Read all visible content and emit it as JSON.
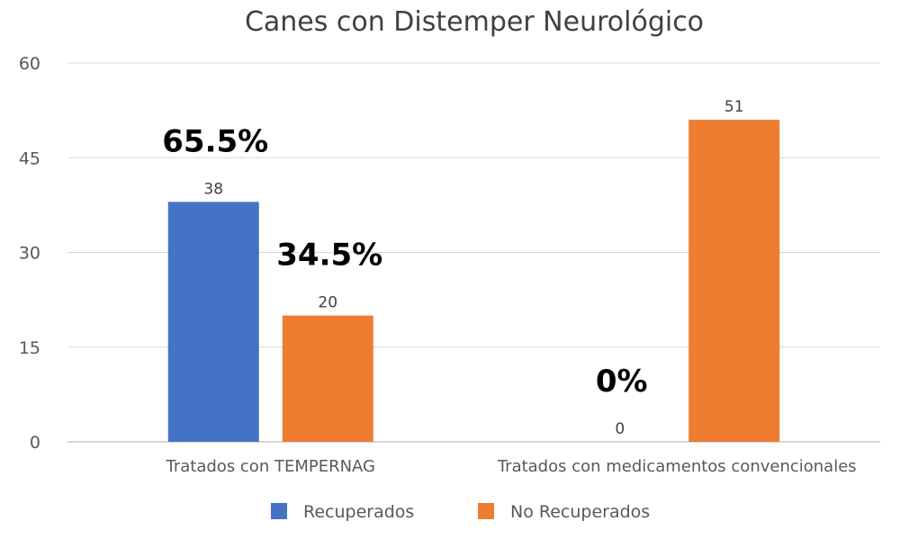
{
  "chart_data": {
    "type": "bar",
    "title": "Canes con Distemper Neurológico",
    "xlabel": "",
    "ylabel": "",
    "ylim": [
      0,
      60
    ],
    "yticks": [
      0,
      15,
      30,
      45,
      60
    ],
    "categories": [
      "Tratados con TEMPERNAG",
      "Tratados con medicamentos convencionales"
    ],
    "series": [
      {
        "name": "Recuperados",
        "color": "#4472C4",
        "values": [
          38,
          0
        ]
      },
      {
        "name": "No Recuperados",
        "color": "#ED7D31",
        "values": [
          20,
          51
        ]
      }
    ],
    "percent_annotations": [
      {
        "category": 0,
        "series": 0,
        "text": "65.5%"
      },
      {
        "category": 0,
        "series": 1,
        "text": "34.5%"
      },
      {
        "category": 1,
        "series": 0,
        "text": "0%"
      }
    ],
    "grid": true,
    "legend_position": "bottom"
  }
}
